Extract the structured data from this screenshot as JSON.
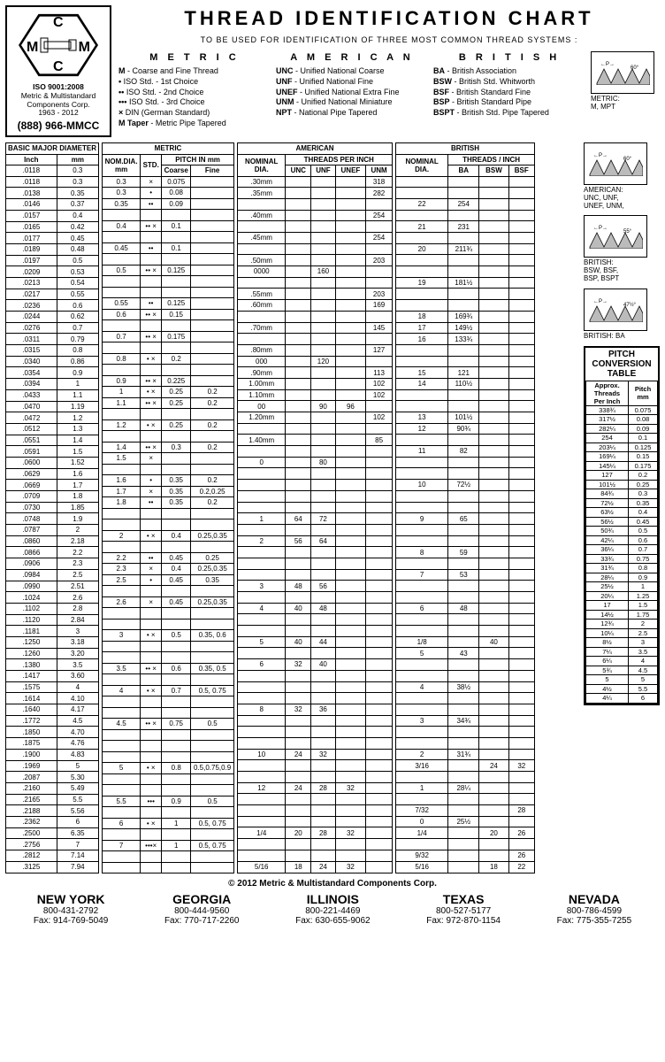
{
  "title": "THREAD IDENTIFICATION CHART",
  "subtitle": "TO BE USED FOR IDENTIFICATION OF THREE MOST COMMON THREAD SYSTEMS :",
  "logo": {
    "iso": "ISO 9001:2008",
    "company": "Metric & Multistandard Components Corp.",
    "years": "1963 - 2012",
    "phone": "(888) 966-MMCC"
  },
  "legend": {
    "metric": {
      "title": "M E T R I C",
      "items": [
        {
          "k": "M",
          "v": "- Coarse and Fine Thread"
        },
        {
          "k": "•",
          "v": " ISO Std. - 1st Choice"
        },
        {
          "k": "••",
          "v": " ISO Std. - 2nd Choice"
        },
        {
          "k": "•••",
          "v": " ISO Std. - 3rd Choice"
        },
        {
          "k": "×",
          "v": " DIN (German Standard)"
        },
        {
          "k": "M Taper",
          "v": "- Metric Pipe Tapered"
        }
      ]
    },
    "american": {
      "title": "A M E R I C A N",
      "items": [
        {
          "k": "UNC",
          "v": "- Unified National Coarse"
        },
        {
          "k": "UNF",
          "v": "- Unified National Fine"
        },
        {
          "k": "UNEF",
          "v": "- Unified National Extra Fine"
        },
        {
          "k": "UNM",
          "v": "- Unified National Miniature"
        },
        {
          "k": "NPT",
          "v": "- National Pipe Tapered"
        }
      ]
    },
    "british": {
      "title": "B R I T I S H",
      "items": [
        {
          "k": "BA",
          "v": "- British Association"
        },
        {
          "k": "BSW",
          "v": "- British Std. Whitworth"
        },
        {
          "k": "BSF",
          "v": "- British Standard Fine"
        },
        {
          "k": "BSP",
          "v": "- British Standard Pipe"
        },
        {
          "k": "BSPT",
          "v": "- British Std. Pipe Tapered"
        }
      ]
    }
  },
  "diagrams": [
    {
      "angle": "60°",
      "label": "METRIC:\nM, MPT"
    },
    {
      "angle": "60°",
      "label": "AMERICAN:\nUNC, UNF,\nUNEF, UNM,"
    },
    {
      "angle": "55°",
      "label": "BRITISH:\nBSW, BSF,\nBSP, BSPT"
    },
    {
      "angle": "47½°",
      "label": "BRITISH: BA"
    }
  ],
  "headers": {
    "basic": {
      "top": "BASIC MAJOR DIAMETER",
      "c1": "Inch",
      "c2": "mm"
    },
    "metric": {
      "top": "METRIC",
      "c1": "NOM.DIA.\nmm",
      "c2": "STD.",
      "c3": "PITCH IN mm",
      "c3a": "Coarse",
      "c3b": "Fine"
    },
    "american": {
      "top": "AMERICAN",
      "c1": "NOMINAL\nDIA.",
      "c2": "THREADS PER INCH",
      "c2a": "UNC",
      "c2b": "UNF",
      "c2c": "UNEF",
      "c2d": "UNM"
    },
    "british": {
      "top": "BRITISH",
      "c1": "NOMINAL\nDIA.",
      "c2": "THREADS / INCH",
      "c2a": "BA",
      "c2b": "BSW",
      "c2c": "BSF"
    }
  },
  "basic_rows": [
    [
      ".0118",
      "0.3"
    ],
    [
      ".0118",
      "0.3"
    ],
    [
      ".0138",
      "0.35"
    ],
    [
      ".0146",
      "0.37"
    ],
    [
      ".0157",
      "0.4"
    ],
    [
      ".0165",
      "0.42"
    ],
    [
      ".0177",
      "0.45"
    ],
    [
      ".0189",
      "0.48"
    ],
    [
      ".0197",
      "0.5"
    ],
    [
      ".0209",
      "0.53"
    ],
    [
      ".0213",
      "0.54"
    ],
    [
      ".0217",
      "0.55"
    ],
    [
      ".0236",
      "0.6"
    ],
    [
      ".0244",
      "0.62"
    ],
    [
      ".0276",
      "0.7"
    ],
    [
      ".0311",
      "0.79"
    ],
    [
      ".0315",
      "0.8"
    ],
    [
      ".0340",
      "0.86"
    ],
    [
      ".0354",
      "0.9"
    ],
    [
      ".0394",
      "1"
    ],
    [
      ".0433",
      "1.1"
    ],
    [
      ".0470",
      "1.19"
    ],
    [
      ".0472",
      "1.2"
    ],
    [
      ".0512",
      "1.3"
    ],
    [
      ".0551",
      "1.4"
    ],
    [
      ".0591",
      "1.5"
    ],
    [
      ".0600",
      "1.52"
    ],
    [
      ".0629",
      "1.6"
    ],
    [
      ".0669",
      "1.7"
    ],
    [
      ".0709",
      "1.8"
    ],
    [
      ".0730",
      "1.85"
    ],
    [
      ".0748",
      "1.9"
    ],
    [
      ".0787",
      "2"
    ],
    [
      ".0860",
      "2.18"
    ],
    [
      ".0866",
      "2.2"
    ],
    [
      ".0906",
      "2.3"
    ],
    [
      ".0984",
      "2.5"
    ],
    [
      ".0990",
      "2.51"
    ],
    [
      ".1024",
      "2.6"
    ],
    [
      ".1102",
      "2.8"
    ],
    [
      ".1120",
      "2.84"
    ],
    [
      ".1181",
      "3"
    ],
    [
      ".1250",
      "3.18"
    ],
    [
      ".1260",
      "3.20"
    ],
    [
      ".1380",
      "3.5"
    ],
    [
      ".1417",
      "3.60"
    ],
    [
      ".1575",
      "4"
    ],
    [
      ".1614",
      "4.10"
    ],
    [
      ".1640",
      "4.17"
    ],
    [
      ".1772",
      "4.5"
    ],
    [
      ".1850",
      "4.70"
    ],
    [
      ".1875",
      "4.76"
    ],
    [
      ".1900",
      "4.83"
    ],
    [
      ".1969",
      "5"
    ],
    [
      ".2087",
      "5.30"
    ],
    [
      ".2160",
      "5.49"
    ],
    [
      ".2165",
      "5.5"
    ],
    [
      ".2188",
      "5.56"
    ],
    [
      ".2362",
      "6"
    ],
    [
      ".2500",
      "6.35"
    ],
    [
      ".2756",
      "7"
    ],
    [
      ".2812",
      "7.14"
    ],
    [
      ".3125",
      "7.94"
    ]
  ],
  "metric_rows": [
    [
      "0.3",
      "×",
      "0.075",
      ""
    ],
    [
      "0.3",
      "•",
      "0.08",
      ""
    ],
    [
      "0.35",
      "••",
      "0.09",
      ""
    ],
    [
      "",
      "",
      "",
      ""
    ],
    [
      "0.4",
      "•• ×",
      "0.1",
      ""
    ],
    [
      "",
      "",
      "",
      ""
    ],
    [
      "0.45",
      "••",
      "0.1",
      ""
    ],
    [
      "",
      "",
      "",
      ""
    ],
    [
      "0.5",
      "•• ×",
      "0.125",
      ""
    ],
    [
      "",
      "",
      "",
      ""
    ],
    [
      "",
      "",
      "",
      ""
    ],
    [
      "0.55",
      "••",
      "0.125",
      ""
    ],
    [
      "0.6",
      "•• ×",
      "0.15",
      ""
    ],
    [
      "",
      "",
      "",
      ""
    ],
    [
      "0.7",
      "•• ×",
      "0.175",
      ""
    ],
    [
      "",
      "",
      "",
      ""
    ],
    [
      "0.8",
      "• ×",
      "0.2",
      ""
    ],
    [
      "",
      "",
      "",
      ""
    ],
    [
      "0.9",
      "•• ×",
      "0.225",
      ""
    ],
    [
      "1",
      "• ×",
      "0.25",
      "0.2"
    ],
    [
      "1.1",
      "•• ×",
      "0.25",
      "0.2"
    ],
    [
      "",
      "",
      "",
      ""
    ],
    [
      "1.2",
      "• ×",
      "0.25",
      "0.2"
    ],
    [
      "",
      "",
      "",
      ""
    ],
    [
      "1.4",
      "•• ×",
      "0.3",
      "0.2"
    ],
    [
      "1.5",
      "×",
      "",
      ""
    ],
    [
      "",
      "",
      "",
      ""
    ],
    [
      "1.6",
      "•",
      "0.35",
      "0.2"
    ],
    [
      "1.7",
      "×",
      "0.35",
      "0.2,0.25"
    ],
    [
      "1.8",
      "••",
      "0.35",
      "0.2"
    ],
    [
      "",
      "",
      "",
      ""
    ],
    [
      "",
      "",
      "",
      ""
    ],
    [
      "2",
      "• ×",
      "0.4",
      "0.25,0.35"
    ],
    [
      "",
      "",
      "",
      ""
    ],
    [
      "2.2",
      "••",
      "0.45",
      "0.25"
    ],
    [
      "2.3",
      "×",
      "0.4",
      "0.25,0.35"
    ],
    [
      "2.5",
      "•",
      "0.45",
      "0.35"
    ],
    [
      "",
      "",
      "",
      ""
    ],
    [
      "2.6",
      "×",
      "0.45",
      "0.25,0.35"
    ],
    [
      "",
      "",
      "",
      ""
    ],
    [
      "",
      "",
      "",
      ""
    ],
    [
      "3",
      "• ×",
      "0.5",
      "0.35, 0.6"
    ],
    [
      "",
      "",
      "",
      ""
    ],
    [
      "",
      "",
      "",
      ""
    ],
    [
      "3.5",
      "•• ×",
      "0.6",
      "0.35, 0.5"
    ],
    [
      "",
      "",
      "",
      ""
    ],
    [
      "4",
      "• ×",
      "0.7",
      "0.5, 0.75"
    ],
    [
      "",
      "",
      "",
      ""
    ],
    [
      "",
      "",
      "",
      ""
    ],
    [
      "4.5",
      "•• ×",
      "0.75",
      "0.5"
    ],
    [
      "",
      "",
      "",
      ""
    ],
    [
      "",
      "",
      "",
      ""
    ],
    [
      "",
      "",
      "",
      ""
    ],
    [
      "5",
      "• ×",
      "0.8",
      "0.5,0.75,0.9"
    ],
    [
      "",
      "",
      "",
      ""
    ],
    [
      "",
      "",
      "",
      ""
    ],
    [
      "5.5",
      "•••",
      "0.9",
      "0.5"
    ],
    [
      "",
      "",
      "",
      ""
    ],
    [
      "6",
      "• ×",
      "1",
      "0.5, 0.75"
    ],
    [
      "",
      "",
      "",
      ""
    ],
    [
      "7",
      "•••×",
      "1",
      "0.5, 0.75"
    ],
    [
      "",
      "",
      "",
      ""
    ],
    [
      "",
      "",
      "",
      ""
    ]
  ],
  "american_rows": [
    [
      ".30mm",
      "",
      "",
      "",
      "318"
    ],
    [
      ".35mm",
      "",
      "",
      "",
      "282"
    ],
    [
      "",
      "",
      "",
      "",
      ""
    ],
    [
      ".40mm",
      "",
      "",
      "",
      "254"
    ],
    [
      "",
      "",
      "",
      "",
      ""
    ],
    [
      ".45mm",
      "",
      "",
      "",
      "254"
    ],
    [
      "",
      "",
      "",
      "",
      ""
    ],
    [
      ".50mm",
      "",
      "",
      "",
      "203"
    ],
    [
      "0000",
      "",
      "160",
      "",
      ""
    ],
    [
      "",
      "",
      "",
      "",
      ""
    ],
    [
      ".55mm",
      "",
      "",
      "",
      "203"
    ],
    [
      ".60mm",
      "",
      "",
      "",
      "169"
    ],
    [
      "",
      "",
      "",
      "",
      ""
    ],
    [
      ".70mm",
      "",
      "",
      "",
      "145"
    ],
    [
      "",
      "",
      "",
      "",
      ""
    ],
    [
      ".80mm",
      "",
      "",
      "",
      "127"
    ],
    [
      "000",
      "",
      "120",
      "",
      ""
    ],
    [
      ".90mm",
      "",
      "",
      "",
      "113"
    ],
    [
      "1.00mm",
      "",
      "",
      "",
      "102"
    ],
    [
      "1.10mm",
      "",
      "",
      "",
      "102"
    ],
    [
      "00",
      "",
      "90",
      "96",
      ""
    ],
    [
      "1.20mm",
      "",
      "",
      "",
      "102"
    ],
    [
      "",
      "",
      "",
      "",
      ""
    ],
    [
      "1.40mm",
      "",
      "",
      "",
      "85"
    ],
    [
      "",
      "",
      "",
      "",
      ""
    ],
    [
      "0",
      "",
      "80",
      "",
      ""
    ],
    [
      "",
      "",
      "",
      "",
      ""
    ],
    [
      "",
      "",
      "",
      "",
      ""
    ],
    [
      "",
      "",
      "",
      "",
      ""
    ],
    [
      "",
      "",
      "",
      "",
      ""
    ],
    [
      "1",
      "64",
      "72",
      "",
      ""
    ],
    [
      "",
      "",
      "",
      "",
      ""
    ],
    [
      "2",
      "56",
      "64",
      "",
      ""
    ],
    [
      "",
      "",
      "",
      "",
      ""
    ],
    [
      "",
      "",
      "",
      "",
      ""
    ],
    [
      "",
      "",
      "",
      "",
      ""
    ],
    [
      "3",
      "48",
      "56",
      "",
      ""
    ],
    [
      "",
      "",
      "",
      "",
      ""
    ],
    [
      "4",
      "40",
      "48",
      "",
      ""
    ],
    [
      "",
      "",
      "",
      "",
      ""
    ],
    [
      "",
      "",
      "",
      "",
      ""
    ],
    [
      "5",
      "40",
      "44",
      "",
      ""
    ],
    [
      "",
      "",
      "",
      "",
      ""
    ],
    [
      "6",
      "32",
      "40",
      "",
      ""
    ],
    [
      "",
      "",
      "",
      "",
      ""
    ],
    [
      "",
      "",
      "",
      "",
      ""
    ],
    [
      "",
      "",
      "",
      "",
      ""
    ],
    [
      "8",
      "32",
      "36",
      "",
      ""
    ],
    [
      "",
      "",
      "",
      "",
      ""
    ],
    [
      "",
      "",
      "",
      "",
      ""
    ],
    [
      "",
      "",
      "",
      "",
      ""
    ],
    [
      "10",
      "24",
      "32",
      "",
      ""
    ],
    [
      "",
      "",
      "",
      "",
      ""
    ],
    [
      "",
      "",
      "",
      "",
      ""
    ],
    [
      "12",
      "24",
      "28",
      "32",
      ""
    ],
    [
      "",
      "",
      "",
      "",
      ""
    ],
    [
      "",
      "",
      "",
      "",
      ""
    ],
    [
      "",
      "",
      "",
      "",
      ""
    ],
    [
      "1/4",
      "20",
      "28",
      "32",
      ""
    ],
    [
      "",
      "",
      "",
      "",
      ""
    ],
    [
      "",
      "",
      "",
      "",
      ""
    ],
    [
      "5/16",
      "18",
      "24",
      "32",
      ""
    ]
  ],
  "british_rows": [
    [
      "",
      "",
      "",
      ""
    ],
    [
      "",
      "",
      "",
      ""
    ],
    [
      "22",
      "254",
      "",
      ""
    ],
    [
      "",
      "",
      "",
      ""
    ],
    [
      "21",
      "231",
      "",
      ""
    ],
    [
      "",
      "",
      "",
      ""
    ],
    [
      "20",
      "211¾",
      "",
      ""
    ],
    [
      "",
      "",
      "",
      ""
    ],
    [
      "",
      "",
      "",
      ""
    ],
    [
      "19",
      "181½",
      "",
      ""
    ],
    [
      "",
      "",
      "",
      ""
    ],
    [
      "",
      "",
      "",
      ""
    ],
    [
      "18",
      "169¾",
      "",
      ""
    ],
    [
      "17",
      "149½",
      "",
      ""
    ],
    [
      "16",
      "133¾",
      "",
      ""
    ],
    [
      "",
      "",
      "",
      ""
    ],
    [
      "",
      "",
      "",
      ""
    ],
    [
      "15",
      "121",
      "",
      ""
    ],
    [
      "14",
      "110½",
      "",
      ""
    ],
    [
      "",
      "",
      "",
      ""
    ],
    [
      "",
      "",
      "",
      ""
    ],
    [
      "13",
      "101½",
      "",
      ""
    ],
    [
      "12",
      "90¾",
      "",
      ""
    ],
    [
      "",
      "",
      "",
      ""
    ],
    [
      "11",
      "82",
      "",
      ""
    ],
    [
      "",
      "",
      "",
      ""
    ],
    [
      "",
      "",
      "",
      ""
    ],
    [
      "10",
      "72½",
      "",
      ""
    ],
    [
      "",
      "",
      "",
      ""
    ],
    [
      "",
      "",
      "",
      ""
    ],
    [
      "9",
      "65",
      "",
      ""
    ],
    [
      "",
      "",
      "",
      ""
    ],
    [
      "",
      "",
      "",
      ""
    ],
    [
      "8",
      "59",
      "",
      ""
    ],
    [
      "",
      "",
      "",
      ""
    ],
    [
      "7",
      "53",
      "",
      ""
    ],
    [
      "",
      "",
      "",
      ""
    ],
    [
      "",
      "",
      "",
      ""
    ],
    [
      "6",
      "48",
      "",
      ""
    ],
    [
      "",
      "",
      "",
      ""
    ],
    [
      "",
      "",
      "",
      ""
    ],
    [
      "1/8",
      "",
      "40",
      ""
    ],
    [
      "5",
      "43",
      "",
      ""
    ],
    [
      "",
      "",
      "",
      ""
    ],
    [
      "",
      "",
      "",
      ""
    ],
    [
      "4",
      "38½",
      "",
      ""
    ],
    [
      "",
      "",
      "",
      ""
    ],
    [
      "",
      "",
      "",
      ""
    ],
    [
      "3",
      "34¾",
      "",
      ""
    ],
    [
      "",
      "",
      "",
      ""
    ],
    [
      "",
      "",
      "",
      ""
    ],
    [
      "2",
      "31¾",
      "",
      ""
    ],
    [
      "3/16",
      "",
      "24",
      "32"
    ],
    [
      "",
      "",
      "",
      ""
    ],
    [
      "1",
      "28¼",
      "",
      ""
    ],
    [
      "",
      "",
      "",
      ""
    ],
    [
      "7/32",
      "",
      "",
      "28"
    ],
    [
      "0",
      "25½",
      "",
      ""
    ],
    [
      "1/4",
      "",
      "20",
      "26"
    ],
    [
      "",
      "",
      "",
      ""
    ],
    [
      "9/32",
      "",
      "",
      "26"
    ],
    [
      "5/16",
      "",
      "18",
      "22"
    ]
  ],
  "pitch": {
    "title": "PITCH CONVERSION TABLE",
    "h1": "Approx.\nThreads\nPer Inch",
    "h2": "Pitch\nmm",
    "rows": [
      [
        "338¾",
        "0.075"
      ],
      [
        "317½",
        "0.08"
      ],
      [
        "282¼",
        "0.09"
      ],
      [
        "254",
        "0.1"
      ],
      [
        "203¼",
        "0.125"
      ],
      [
        "169¼",
        "0.15"
      ],
      [
        "145¼",
        "0.175"
      ],
      [
        "127",
        "0.2"
      ],
      [
        "101½",
        "0.25"
      ],
      [
        "84¾",
        "0.3"
      ],
      [
        "72½",
        "0.35"
      ],
      [
        "63½",
        "0.4"
      ],
      [
        "56½",
        "0.45"
      ],
      [
        "50¾",
        "0.5"
      ],
      [
        "42¼",
        "0.6"
      ],
      [
        "36¼",
        "0.7"
      ],
      [
        "33¾",
        "0.75"
      ],
      [
        "31¾",
        "0.8"
      ],
      [
        "28¼",
        "0.9"
      ],
      [
        "25½",
        "1"
      ],
      [
        "20¼",
        "1.25"
      ],
      [
        "17",
        "1.5"
      ],
      [
        "14½",
        "1.75"
      ],
      [
        "12¾",
        "2"
      ],
      [
        "10¼",
        "2.5"
      ],
      [
        "8½",
        "3"
      ],
      [
        "7¼",
        "3.5"
      ],
      [
        "6¼",
        "4"
      ],
      [
        "5¾",
        "4.5"
      ],
      [
        "5",
        "5"
      ],
      [
        "4½",
        "5.5"
      ],
      [
        "4¼",
        "6"
      ]
    ]
  },
  "copyright": "© 2012 Metric & Multistandard Components Corp.",
  "locations": [
    {
      "name": "NEW YORK",
      "ph": "800-431-2792",
      "fax": "Fax: 914-769-5049"
    },
    {
      "name": "GEORGIA",
      "ph": "800-444-9560",
      "fax": "Fax: 770-717-2260"
    },
    {
      "name": "ILLINOIS",
      "ph": "800-221-4469",
      "fax": "Fax: 630-655-9062"
    },
    {
      "name": "TEXAS",
      "ph": "800-527-5177",
      "fax": "Fax: 972-870-1154"
    },
    {
      "name": "NEVADA",
      "ph": "800-786-4599",
      "fax": "Fax: 775-355-7255"
    }
  ]
}
